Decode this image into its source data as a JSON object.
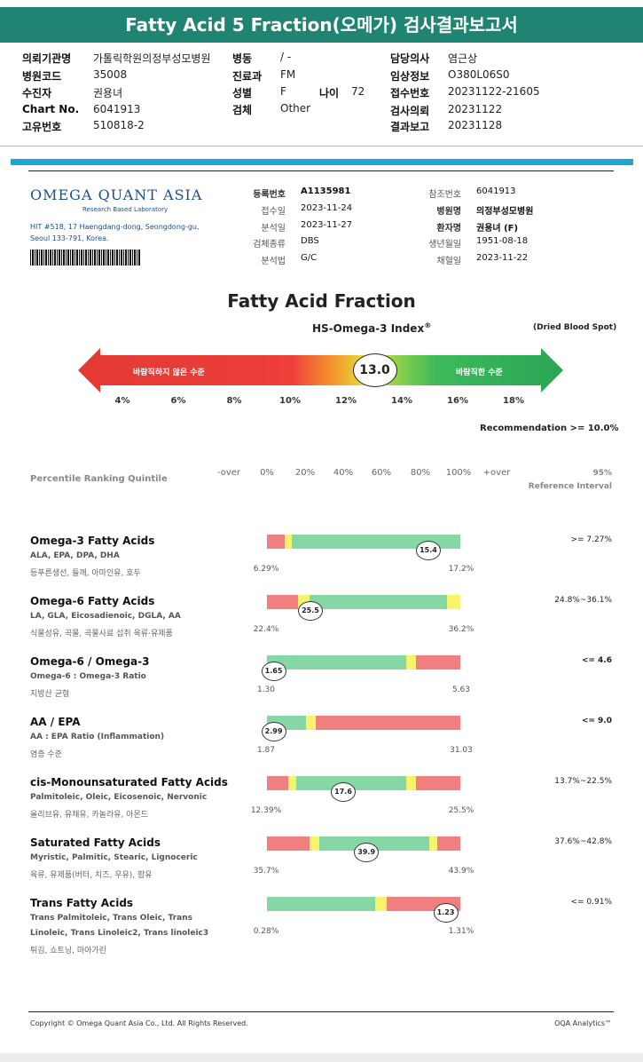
{
  "report_title": "Fatty Acid 5 Fraction(오메가) 검사결과보고서",
  "patient": {
    "inst_k": "의뢰기관명",
    "inst_v": "가톨릭학원의정부성모병원",
    "code_k": "병원코드",
    "code_v": "35008",
    "rec_k": "수진자",
    "rec_v": "권용녀",
    "chart_k": "Chart No.",
    "chart_v": "6041913",
    "uid_k": "고유번호",
    "uid_v": "510818-2",
    "ward_k": "병동",
    "ward_v": "/ -",
    "dept_k": "진료과",
    "dept_v": "FM",
    "sex_k": "성별",
    "sex_v": "F",
    "age_k": "나이",
    "age_v": "72",
    "spec_k": "검체",
    "spec_v": "Other",
    "doc_k": "담당의사",
    "doc_v": "염근상",
    "clin_k": "임상정보",
    "clin_v": "O380L06S0",
    "recv_k": "접수번호",
    "recv_v": "20231122-21605",
    "req_k": "검사의뢰",
    "req_v": "20231122",
    "res_k": "결과보고",
    "res_v": "20231128"
  },
  "lab": {
    "logo": "OMEGA QUANT ASIA",
    "tagline": "Research Based Laboratory",
    "address1": "HIT #518, 17 Haengdang-dong, Seongdong-gu,",
    "address2": "Seoul 133-791, Korea."
  },
  "info": {
    "reg_k": "등록번호",
    "reg_v": "A1135981",
    "rcv_k": "접수일",
    "rcv_v": "2023-11-24",
    "ana_k": "분석일",
    "ana_v": "2023-11-27",
    "type_k": "검체종류",
    "type_v": "DBS",
    "meth_k": "분석법",
    "meth_v": "G/C",
    "refno_k": "참조번호",
    "refno_v": "6041913",
    "hosp_k": "병원명",
    "hosp_v": "의정부성모병원",
    "pt_k": "환자명",
    "pt_v": "권용녀 (F)",
    "dob_k": "생년월일",
    "dob_v": "1951-08-18",
    "draw_k": "채혈일",
    "draw_v": "2023-11-22"
  },
  "index": {
    "heading": "Fatty Acid Fraction",
    "name": "HS-Omega-3 Index",
    "reg": "®",
    "dbs": "(Dried Blood Spot)",
    "bad": "바람직하지 않은 수준",
    "good": "바람직한 수준",
    "value": "13.0",
    "value_num": 13.0,
    "ticks": [
      "4%",
      "6%",
      "8%",
      "10%",
      "12%",
      "14%",
      "16%",
      "18%"
    ],
    "recommendation": "Recommendation  >= 10.0%"
  },
  "scale": {
    "label": "Percentile Ranking Quintile",
    "ticks": [
      "-over",
      "0%",
      "20%",
      "40%",
      "60%",
      "80%",
      "100%",
      "+over"
    ],
    "ref1": "95%",
    "ref2": "Reference Interval"
  },
  "rows": [
    {
      "title": "Omega-3 Fatty Acids",
      "sub": "ALA, EPA, DPA, DHA",
      "sub2": "",
      "food": "등푸른생선, 들깨, 아마인유, 호두",
      "min": "6.29%",
      "max": "17.2%",
      "value": "15.4",
      "value_num": 15.4,
      "ref": ">= 7.27%",
      "colors": {
        "red": "#f08080",
        "yellow": "#f7f36a",
        "green": "#86d7a6"
      }
    },
    {
      "title": "Omega-6 Fatty Acids",
      "sub": "LA, GLA, Eicosadienoic, DGLA, AA",
      "sub2": "",
      "food": "식물성유, 곡물, 곡물사료 섭취 육류·유제품",
      "min": "22.4%",
      "max": "36.2%",
      "value": "25.5",
      "value_num": 25.5,
      "ref": "24.8%~36.1%"
    },
    {
      "title": "Omega-6 / Omega-3",
      "sub": "Omega-6 : Omega-3 Ratio",
      "sub2": "",
      "food": "지방산 균형",
      "min": "1.30",
      "max": "5.63",
      "value": "1.65",
      "value_num": 1.65,
      "ref": "<= 4.6"
    },
    {
      "title": "AA / EPA",
      "sub": "AA : EPA Ratio (Inflammation)",
      "sub2": "",
      "food": "염증 수준",
      "min": "1.87",
      "max": "31.03",
      "value": "2.99",
      "value_num": 2.99,
      "ref": "<= 9.0"
    },
    {
      "title": "cis-Monounsaturated Fatty Acids",
      "sub": "Palmitoleic, Oleic, Eicosenoic, Nervonic",
      "sub2": "",
      "food": "올리브유, 유채유, 카놀라유, 아몬드",
      "min": "12.39%",
      "max": "25.5%",
      "value": "17.6",
      "value_num": 17.6,
      "ref": "13.7%~22.5%"
    },
    {
      "title": "Saturated Fatty Acids",
      "sub": "Myristic, Palmitic, Stearic, Lignoceric",
      "sub2": "",
      "food": "육류, 유제품(버터, 치즈, 우유), 팜유",
      "min": "35.7%",
      "max": "43.9%",
      "value": "39.9",
      "value_num": 39.9,
      "ref": "37.6%~42.8%"
    },
    {
      "title": "Trans Fatty Acids",
      "sub": "Trans Palmitoleic, Trans Oleic, Trans",
      "sub2": "Linoleic, Trans Linoleic2, Trans linoleic3",
      "food": "튀김, 쇼트닝, 마아가린",
      "min": "0.28%",
      "max": "1.31%",
      "value": "1.23",
      "value_num": 1.23,
      "ref": "<= 0.91%"
    }
  ],
  "footer": {
    "copyright": "Copyright © Omega Quant Asia Co., Ltd.  All Rights Reserved.",
    "brand": "OQA Analytics™"
  }
}
